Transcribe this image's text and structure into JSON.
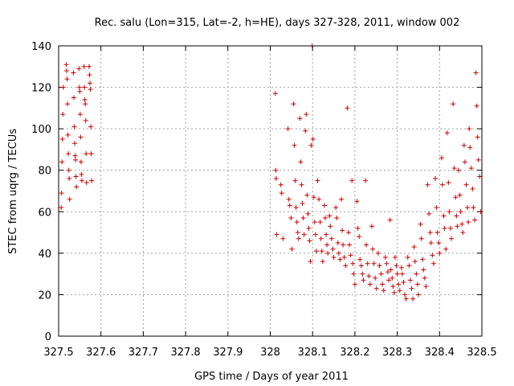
{
  "chart_data": {
    "type": "scatter",
    "title": "Rec. salu (Lon=315, Lat=-2, h=HE), days 327-328, 2011, window 002",
    "xlabel": "GPS time / Days of year 2011",
    "ylabel": "STEC from uqrg / TECUs",
    "xlim": [
      327.5,
      328.5
    ],
    "ylim": [
      0,
      140
    ],
    "x_ticks": [
      "327.5",
      "327.6",
      "327.7",
      "327.8",
      "327.9",
      "328",
      "328.1",
      "328.2",
      "328.3",
      "328.4",
      "328.5"
    ],
    "y_ticks": [
      "0",
      "20",
      "40",
      "60",
      "80",
      "100",
      "120",
      "140"
    ],
    "grid": true,
    "marker": "+",
    "color": "#cc0000",
    "series": [
      {
        "name": "",
        "points": [
          [
            327.506,
            62
          ],
          [
            327.507,
            69
          ],
          [
            327.508,
            84
          ],
          [
            327.509,
            95
          ],
          [
            327.51,
            107
          ],
          [
            327.511,
            120
          ],
          [
            327.518,
            131
          ],
          [
            327.519,
            128
          ],
          [
            327.52,
            124
          ],
          [
            327.521,
            112
          ],
          [
            327.522,
            97
          ],
          [
            327.523,
            88
          ],
          [
            327.524,
            80
          ],
          [
            327.525,
            76
          ],
          [
            327.526,
            66
          ],
          [
            327.535,
            127
          ],
          [
            327.536,
            115
          ],
          [
            327.537,
            101
          ],
          [
            327.538,
            93
          ],
          [
            327.539,
            87
          ],
          [
            327.54,
            85
          ],
          [
            327.541,
            77
          ],
          [
            327.542,
            72
          ],
          [
            327.548,
            129
          ],
          [
            327.549,
            120
          ],
          [
            327.55,
            118
          ],
          [
            327.551,
            107
          ],
          [
            327.552,
            96
          ],
          [
            327.553,
            84
          ],
          [
            327.554,
            78
          ],
          [
            327.555,
            75
          ],
          [
            327.56,
            130
          ],
          [
            327.561,
            120
          ],
          [
            327.562,
            114
          ],
          [
            327.563,
            112
          ],
          [
            327.564,
            104
          ],
          [
            327.565,
            88
          ],
          [
            327.566,
            74
          ],
          [
            327.572,
            130
          ],
          [
            327.573,
            126
          ],
          [
            327.574,
            122
          ],
          [
            327.575,
            119
          ],
          [
            327.576,
            101
          ],
          [
            327.577,
            88
          ],
          [
            327.578,
            75
          ],
          [
            328.012,
            117
          ],
          [
            328.013,
            80
          ],
          [
            328.014,
            76
          ],
          [
            328.015,
            49
          ],
          [
            328.025,
            73
          ],
          [
            328.027,
            69
          ],
          [
            328.03,
            47
          ],
          [
            328.042,
            100
          ],
          [
            328.044,
            66
          ],
          [
            328.046,
            63
          ],
          [
            328.049,
            57
          ],
          [
            328.051,
            42
          ],
          [
            328.055,
            112
          ],
          [
            328.057,
            92
          ],
          [
            328.059,
            75
          ],
          [
            328.061,
            62
          ],
          [
            328.063,
            55
          ],
          [
            328.065,
            50
          ],
          [
            328.067,
            47
          ],
          [
            328.07,
            105
          ],
          [
            328.072,
            84
          ],
          [
            328.074,
            73
          ],
          [
            328.076,
            64
          ],
          [
            328.078,
            57
          ],
          [
            328.08,
            49
          ],
          [
            328.083,
            99
          ],
          [
            328.085,
            107
          ],
          [
            328.087,
            68
          ],
          [
            328.089,
            59
          ],
          [
            328.091,
            52
          ],
          [
            328.093,
            46
          ],
          [
            328.095,
            36
          ],
          [
            328.097,
            92
          ],
          [
            328.099,
            140
          ],
          [
            328.101,
            95
          ],
          [
            328.103,
            67
          ],
          [
            328.105,
            55
          ],
          [
            328.107,
            49
          ],
          [
            328.109,
            41
          ],
          [
            328.112,
            75
          ],
          [
            328.115,
            66
          ],
          [
            328.118,
            55
          ],
          [
            328.12,
            47
          ],
          [
            328.122,
            41
          ],
          [
            328.124,
            36
          ],
          [
            328.128,
            63
          ],
          [
            328.13,
            57
          ],
          [
            328.132,
            49
          ],
          [
            328.134,
            44
          ],
          [
            328.136,
            40
          ],
          [
            328.14,
            58
          ],
          [
            328.142,
            53
          ],
          [
            328.145,
            47
          ],
          [
            328.148,
            42
          ],
          [
            328.15,
            38
          ],
          [
            328.155,
            62
          ],
          [
            328.157,
            57
          ],
          [
            328.16,
            45
          ],
          [
            328.162,
            40
          ],
          [
            328.165,
            37
          ],
          [
            328.168,
            66
          ],
          [
            328.17,
            51
          ],
          [
            328.172,
            44
          ],
          [
            328.175,
            38
          ],
          [
            328.178,
            34
          ],
          [
            328.182,
            110
          ],
          [
            328.185,
            50
          ],
          [
            328.187,
            44
          ],
          [
            328.19,
            39
          ],
          [
            328.193,
            75
          ],
          [
            328.195,
            35
          ],
          [
            328.197,
            30
          ],
          [
            328.2,
            25
          ],
          [
            328.205,
            65
          ],
          [
            328.207,
            52
          ],
          [
            328.21,
            48
          ],
          [
            328.212,
            37
          ],
          [
            328.215,
            34
          ],
          [
            328.218,
            30
          ],
          [
            328.22,
            27
          ],
          [
            328.225,
            75
          ],
          [
            328.227,
            44
          ],
          [
            328.23,
            35
          ],
          [
            328.233,
            29
          ],
          [
            328.236,
            25
          ],
          [
            328.24,
            53
          ],
          [
            328.242,
            42
          ],
          [
            328.245,
            35
          ],
          [
            328.248,
            28
          ],
          [
            328.251,
            23
          ],
          [
            328.255,
            40
          ],
          [
            328.258,
            34
          ],
          [
            328.262,
            30
          ],
          [
            328.265,
            25
          ],
          [
            328.268,
            22
          ],
          [
            328.272,
            38
          ],
          [
            328.275,
            35
          ],
          [
            328.278,
            31
          ],
          [
            328.28,
            27
          ],
          [
            328.283,
            56
          ],
          [
            328.285,
            32
          ],
          [
            328.288,
            28
          ],
          [
            328.29,
            24
          ],
          [
            328.293,
            21
          ],
          [
            328.295,
            38
          ],
          [
            328.298,
            34
          ],
          [
            328.3,
            30
          ],
          [
            328.303,
            25
          ],
          [
            328.306,
            22
          ],
          [
            328.31,
            33
          ],
          [
            328.312,
            30
          ],
          [
            328.315,
            26
          ],
          [
            328.318,
            20
          ],
          [
            328.321,
            18
          ],
          [
            328.325,
            38
          ],
          [
            328.328,
            34
          ],
          [
            328.331,
            27
          ],
          [
            328.334,
            23
          ],
          [
            328.337,
            18
          ],
          [
            328.34,
            43
          ],
          [
            328.342,
            36
          ],
          [
            328.345,
            30
          ],
          [
            328.348,
            25
          ],
          [
            328.35,
            20
          ],
          [
            328.355,
            54
          ],
          [
            328.357,
            47
          ],
          [
            328.36,
            37
          ],
          [
            328.362,
            32
          ],
          [
            328.365,
            28
          ],
          [
            328.368,
            24
          ],
          [
            328.372,
            73
          ],
          [
            328.375,
            59
          ],
          [
            328.378,
            50
          ],
          [
            328.38,
            45
          ],
          [
            328.383,
            39
          ],
          [
            328.386,
            35
          ],
          [
            328.39,
            76
          ],
          [
            328.393,
            62
          ],
          [
            328.395,
            50
          ],
          [
            328.398,
            45
          ],
          [
            328.4,
            40
          ],
          [
            328.405,
            86
          ],
          [
            328.407,
            73
          ],
          [
            328.41,
            58
          ],
          [
            328.412,
            52
          ],
          [
            328.415,
            42
          ],
          [
            328.418,
            98
          ],
          [
            328.421,
            74
          ],
          [
            328.423,
            60
          ],
          [
            328.426,
            52
          ],
          [
            328.428,
            47
          ],
          [
            328.432,
            112
          ],
          [
            328.435,
            81
          ],
          [
            328.438,
            67
          ],
          [
            328.44,
            58
          ],
          [
            328.442,
            53
          ],
          [
            328.445,
            80
          ],
          [
            328.448,
            68
          ],
          [
            328.45,
            60
          ],
          [
            328.453,
            54
          ],
          [
            328.455,
            50
          ],
          [
            328.458,
            92
          ],
          [
            328.46,
            84
          ],
          [
            328.463,
            73
          ],
          [
            328.466,
            62
          ],
          [
            328.468,
            55
          ],
          [
            328.47,
            100
          ],
          [
            328.472,
            91
          ],
          [
            328.475,
            81
          ],
          [
            328.478,
            71
          ],
          [
            328.48,
            62
          ],
          [
            328.483,
            56
          ],
          [
            328.486,
            127
          ],
          [
            328.488,
            111
          ],
          [
            328.49,
            96
          ],
          [
            328.492,
            85
          ],
          [
            328.495,
            77
          ],
          [
            328.497,
            60
          ]
        ]
      }
    ]
  }
}
